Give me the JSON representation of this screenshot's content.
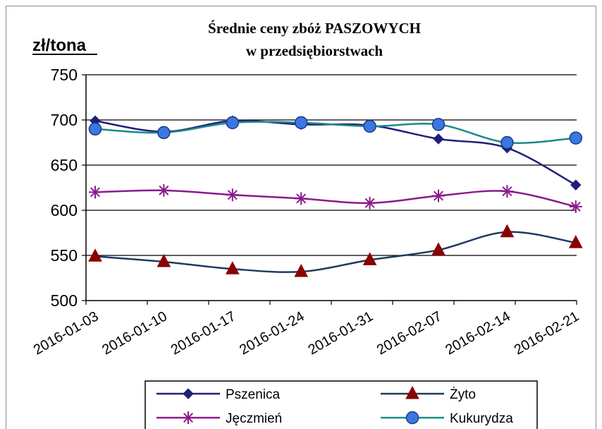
{
  "chart_data": {
    "type": "line",
    "title": "Średnie ceny zbóż PASZOWYCH",
    "subtitle": "w przedsiębiorstwach",
    "ylabel": "zł/tona",
    "xlabel": "",
    "ylim": [
      500,
      750
    ],
    "yticks": [
      "500",
      "550",
      "600",
      "650",
      "700",
      "750"
    ],
    "grid": "horizontal",
    "legend_position": "bottom",
    "categories": [
      "2016-01-03",
      "2016-01-10",
      "2016-01-17",
      "2016-01-24",
      "2016-01-31",
      "2016-02-07",
      "2016-02-14",
      "2016-02-21"
    ],
    "series": [
      {
        "name": "Pszenica",
        "color": "#1f1f7a",
        "marker": "diamond",
        "values": [
          699,
          687,
          699,
          695,
          694,
          679,
          669,
          628
        ]
      },
      {
        "name": "Żyto",
        "color": "#1f3a5f",
        "marker": "triangle",
        "marker_color": "#8b0000",
        "values": [
          549,
          543,
          535,
          532,
          545,
          556,
          576,
          564
        ]
      },
      {
        "name": "Jęczmień",
        "color": "#8b1a8b",
        "marker": "asterisk",
        "values": [
          620,
          622,
          617,
          613,
          608,
          616,
          621,
          604
        ]
      },
      {
        "name": "Kukurydza",
        "color": "#1a8a8a",
        "marker": "circle",
        "marker_color": "#3a78e0",
        "values": [
          690,
          686,
          697,
          697,
          693,
          695,
          675,
          680
        ]
      }
    ]
  }
}
